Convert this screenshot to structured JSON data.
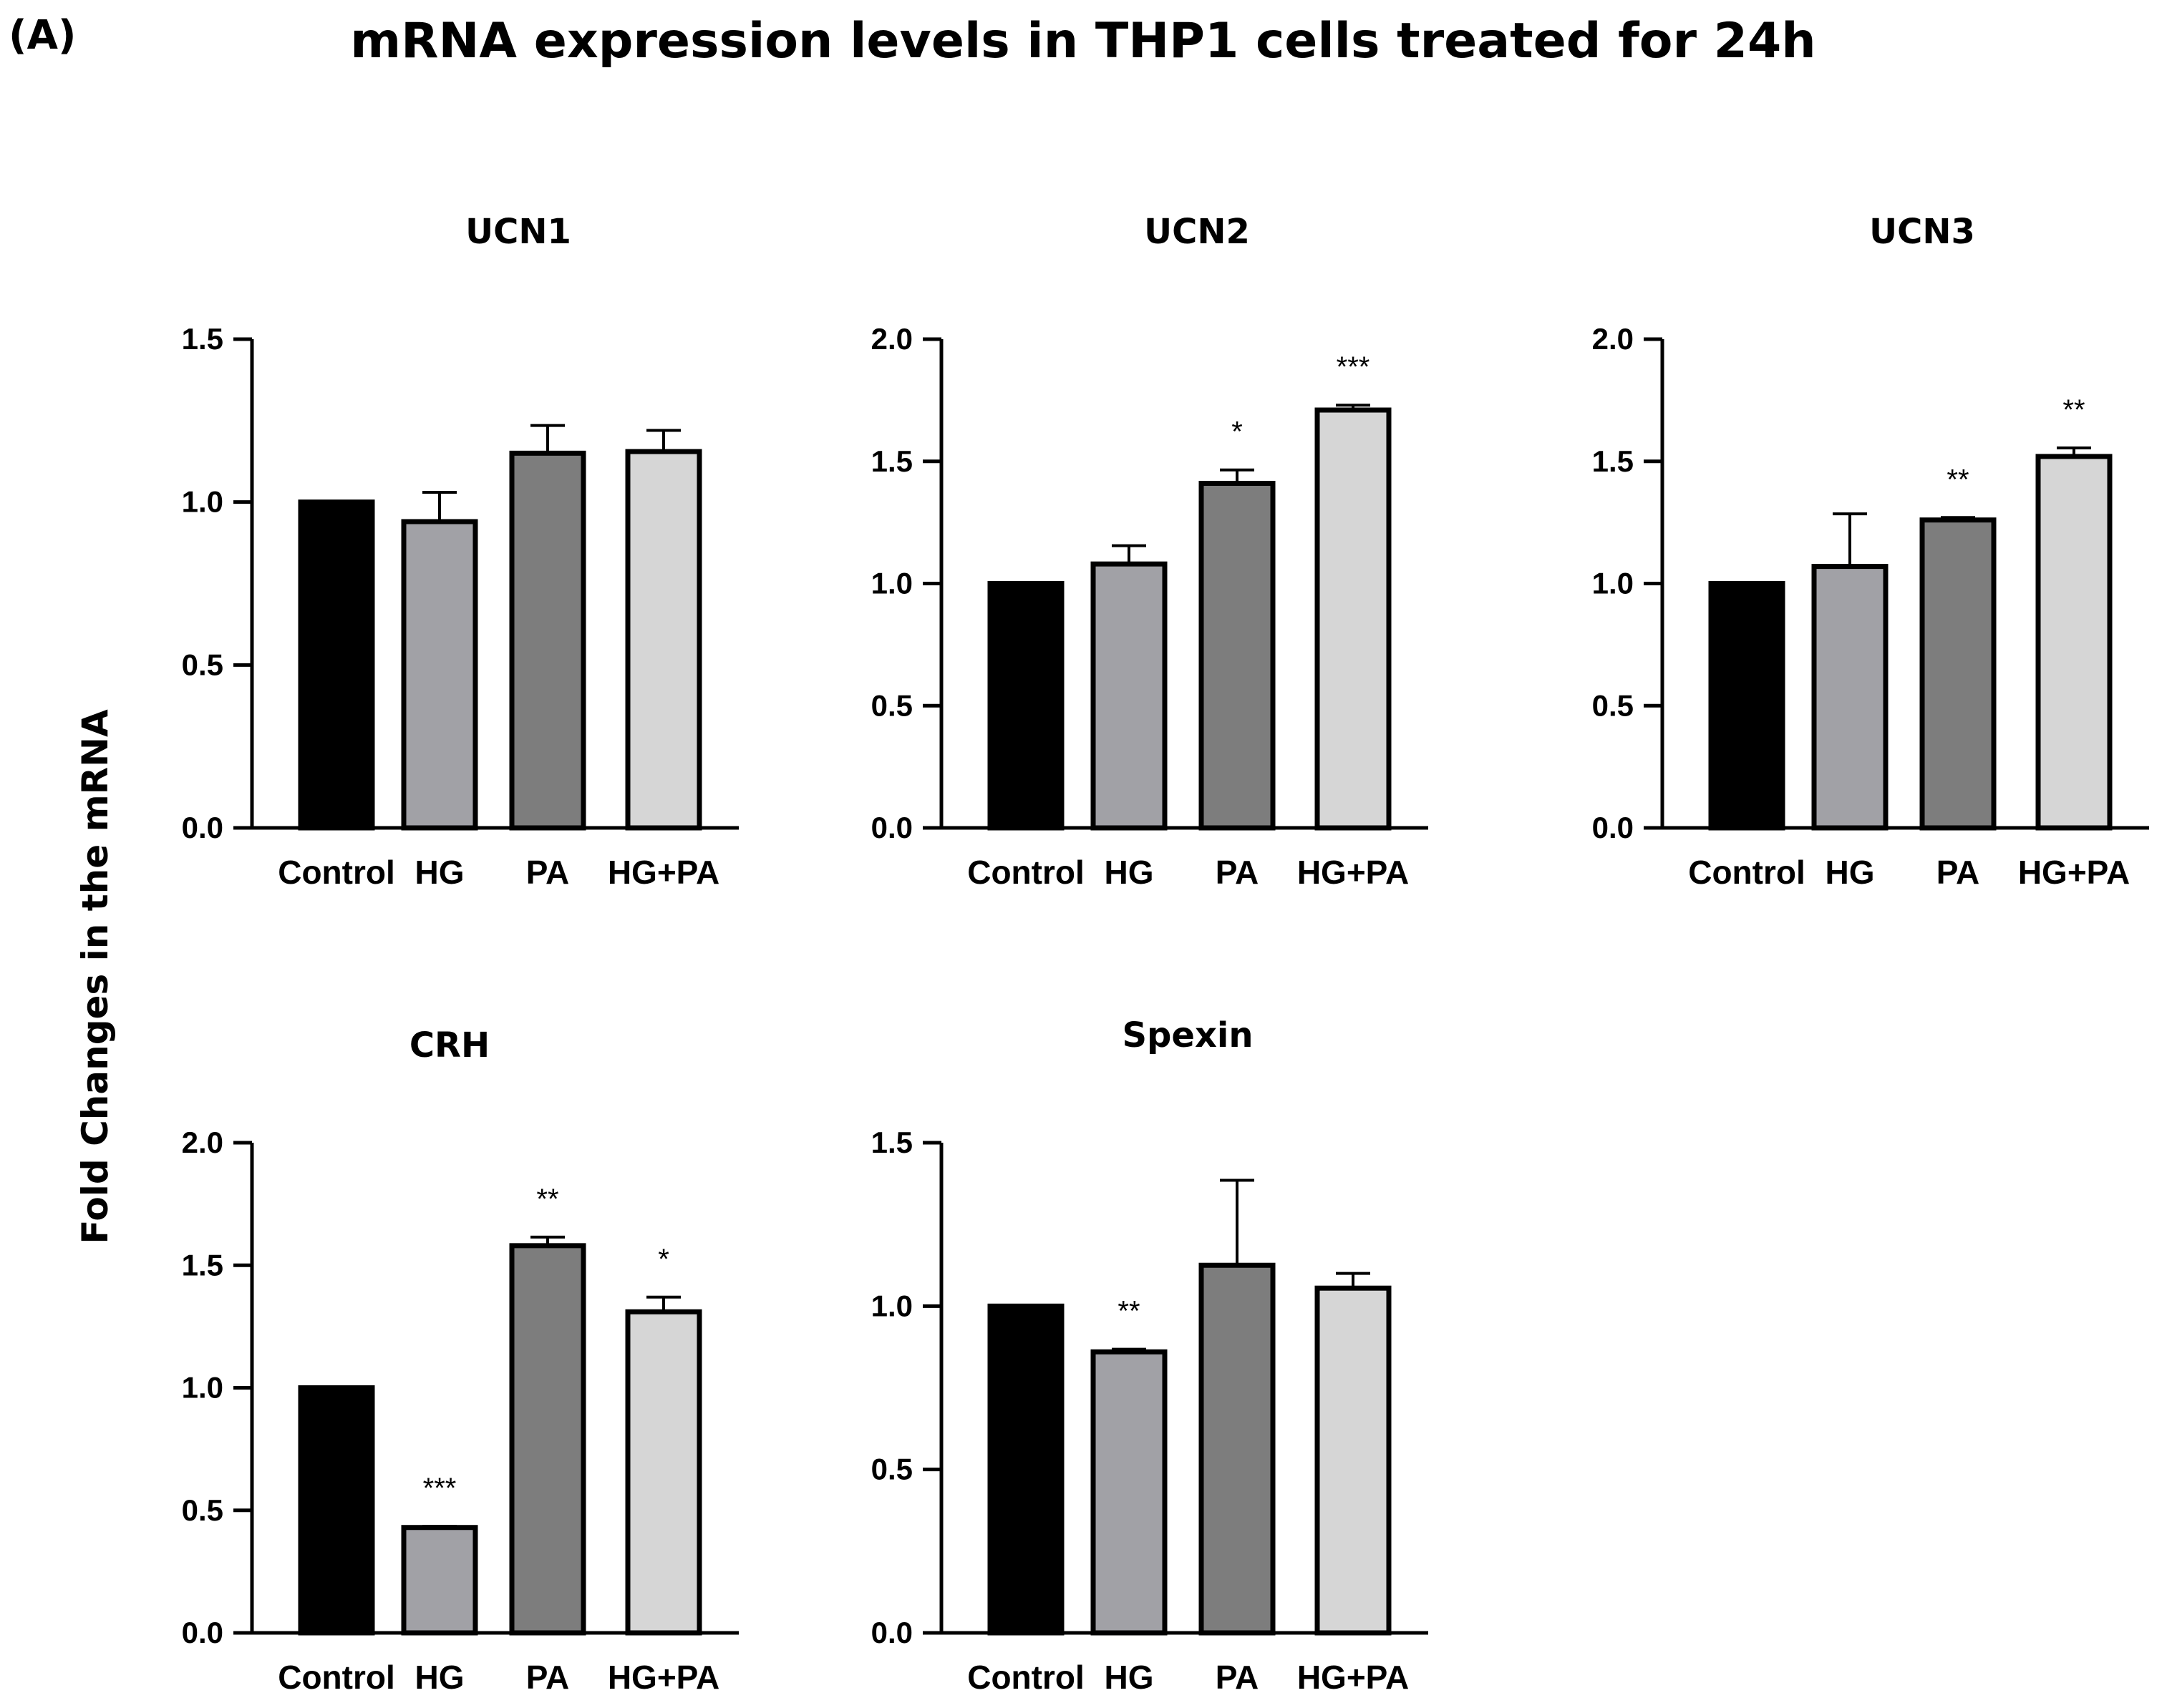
{
  "figure": {
    "panel_label": "(A)",
    "title": "mRNA expression levels in THP1 cells treated for 24h",
    "shared_ylabel": "Fold Changes in the mRNA"
  },
  "colors": {
    "Control": "#000000",
    "HG": "#a1a1a6",
    "PA": "#7d7d7d",
    "HG+PA": "#d6d6d6",
    "outline": "#000000"
  },
  "chart_data": [
    {
      "type": "bar",
      "title": "UCN1",
      "categories": [
        "Control",
        "HG",
        "PA",
        "HG+PA"
      ],
      "values": [
        1.0,
        0.94,
        1.15,
        1.155
      ],
      "error": [
        0,
        0.09,
        0.085,
        0.065
      ],
      "significance": [
        "",
        "",
        "",
        ""
      ],
      "ylim": [
        0,
        1.5
      ],
      "yticks": [
        "0.0",
        "0.5",
        "1.0",
        "1.5"
      ]
    },
    {
      "type": "bar",
      "title": "UCN2",
      "categories": [
        "Control",
        "HG",
        "PA",
        "HG+PA"
      ],
      "values": [
        1.0,
        1.08,
        1.41,
        1.71
      ],
      "error": [
        0,
        0.075,
        0.055,
        0.02
      ],
      "significance": [
        "",
        "",
        "*",
        "***"
      ],
      "ylim": [
        0,
        2.0
      ],
      "yticks": [
        "0.0",
        "0.5",
        "1.0",
        "1.5",
        "2.0"
      ]
    },
    {
      "type": "bar",
      "title": "UCN3",
      "categories": [
        "Control",
        "HG",
        "PA",
        "HG+PA"
      ],
      "values": [
        1.0,
        1.07,
        1.26,
        1.52
      ],
      "error": [
        0,
        0.215,
        0.01,
        0.035
      ],
      "significance": [
        "",
        "",
        "**",
        "**"
      ],
      "ylim": [
        0,
        2.0
      ],
      "yticks": [
        "0.0",
        "0.5",
        "1.0",
        "1.5",
        "2.0"
      ]
    },
    {
      "type": "bar",
      "title": "CRH",
      "categories": [
        "Control",
        "HG",
        "PA",
        "HG+PA"
      ],
      "values": [
        1.0,
        0.43,
        1.58,
        1.31
      ],
      "error": [
        0,
        0.005,
        0.035,
        0.06
      ],
      "significance": [
        "",
        "***",
        "**",
        "*"
      ],
      "ylim": [
        0,
        2.0
      ],
      "yticks": [
        "0.0",
        "0.5",
        "1.0",
        "1.5",
        "2.0"
      ]
    },
    {
      "type": "bar",
      "title": "Spexin",
      "categories": [
        "Control",
        "HG",
        "PA",
        "HG+PA"
      ],
      "values": [
        1.0,
        0.86,
        1.125,
        1.055
      ],
      "error": [
        0,
        0.008,
        0.26,
        0.045
      ],
      "significance": [
        "",
        "**",
        "",
        ""
      ],
      "ylim": [
        0,
        1.5
      ],
      "yticks": [
        "0.0",
        "0.5",
        "1.0",
        "1.5"
      ]
    }
  ]
}
